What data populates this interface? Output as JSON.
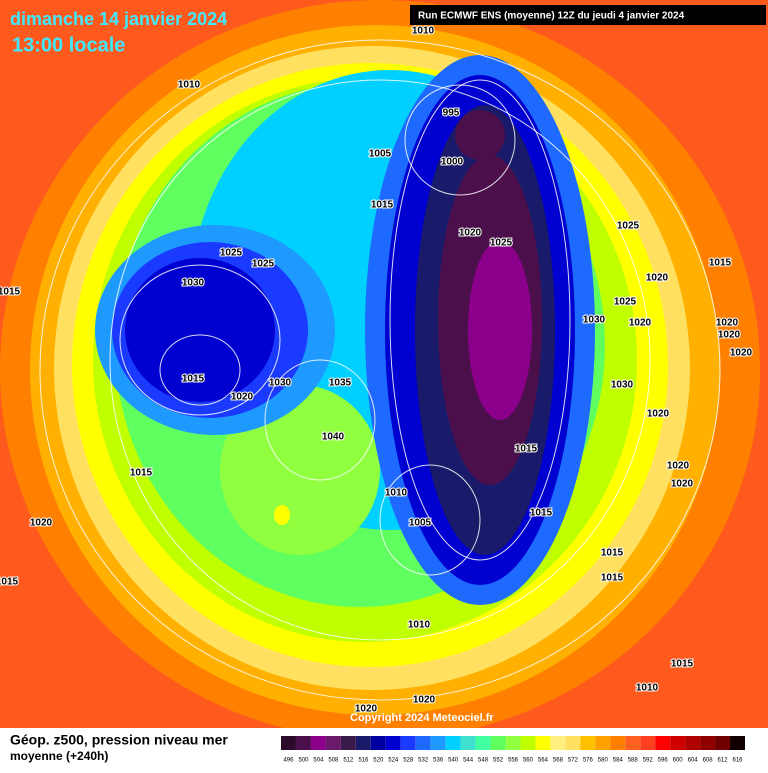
{
  "header": {
    "date": "dimanche 14 janvier 2024",
    "time": "13:00 locale",
    "run": "Run ECMWF ENS (moyenne) 12Z du jeudi 4 janvier 2024"
  },
  "footer": {
    "title": "Géop. z500, pression niveau mer",
    "subtitle": "moyenne  (+240h)",
    "copyright": "Copyright 2024 Meteociel.fr"
  },
  "isobar_labels": [
    1010,
    1010,
    995,
    1005,
    1000,
    1015,
    1020,
    1025,
    1025,
    1025,
    1025,
    1030,
    1015,
    1020,
    1015,
    1025,
    1030,
    1020,
    1020,
    1020,
    1020,
    1015,
    1020,
    1030,
    1035,
    1030,
    1020,
    1040,
    1015,
    1020,
    1020,
    1015,
    1010,
    1015,
    1005,
    1020,
    1015,
    1015,
    1015,
    1010,
    1015,
    1010,
    1020,
    1020
  ],
  "colorbar": {
    "values": [
      496,
      500,
      504,
      508,
      512,
      516,
      520,
      524,
      528,
      532,
      536,
      540,
      544,
      548,
      552,
      556,
      560,
      564,
      568,
      572,
      576,
      580,
      584,
      588,
      592,
      596,
      600,
      604,
      608,
      612,
      616
    ],
    "colors": [
      "#2b0a2b",
      "#4b0f4b",
      "#8b008b",
      "#6b1a6b",
      "#3a1a4a",
      "#1a1a6a",
      "#0000a0",
      "#0000d0",
      "#1a3aff",
      "#1e6aff",
      "#1e9aff",
      "#00d0ff",
      "#40e0d0",
      "#40ffa0",
      "#60ff60",
      "#90ff40",
      "#c0ff00",
      "#ffff00",
      "#fff080",
      "#ffe060",
      "#ffc000",
      "#ffa000",
      "#ff8000",
      "#ff6020",
      "#ff4020",
      "#ff0000",
      "#d00000",
      "#b00000",
      "#900000",
      "#700000",
      "#100000"
    ]
  }
}
